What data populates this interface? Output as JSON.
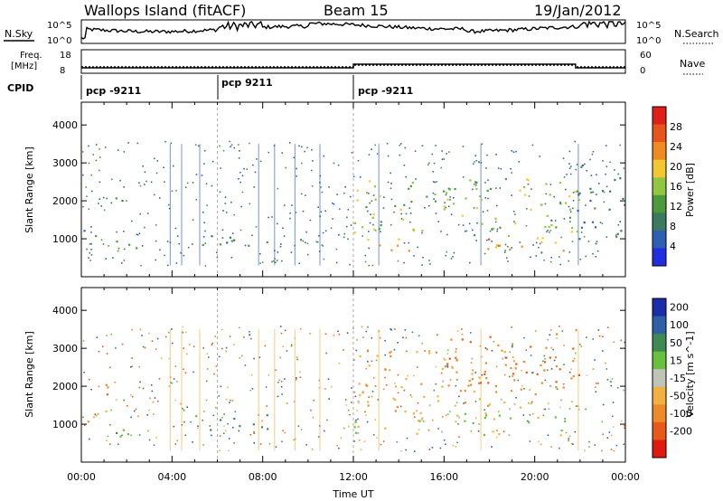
{
  "header": {
    "site": "Wallops Island (fitACF)",
    "beam": "Beam 15",
    "date": "19/Jan/2012"
  },
  "noise_panel": {
    "label_left": "N.Sky",
    "label_right": "N.Search",
    "left_ticks": [
      "10^5",
      "10^0"
    ],
    "right_ticks": [
      "10^5",
      "10^0"
    ]
  },
  "freq_panel": {
    "label_left_1": "Freq.",
    "label_left_2": "[MHz]",
    "label_right": "Nave",
    "left_ticks": [
      "18",
      "8"
    ],
    "right_ticks": [
      "60",
      "0"
    ]
  },
  "cpid_panel": {
    "label": "CPID",
    "segments": [
      {
        "label": "pcp -9211",
        "start_hour": 0
      },
      {
        "label": "pcp 9211",
        "start_hour": 6
      },
      {
        "label": "pcp -9211",
        "start_hour": 12
      }
    ]
  },
  "colors": {
    "power_scale": [
      "#1f2fe0",
      "#2d5fb4",
      "#3a7a5e",
      "#4d9a3a",
      "#90c640",
      "#f2c832",
      "#f08a22",
      "#e8551a",
      "#e02018"
    ],
    "velocity_scale": [
      "#1c2da8",
      "#2f5fa6",
      "#3e8a52",
      "#66c23c",
      "#c0c4b8",
      "#f2b040",
      "#ee8a2a",
      "#e85a1a",
      "#e01a10"
    ]
  },
  "chart_data": [
    {
      "type": "heatmap",
      "name": "power",
      "xlabel": "",
      "ylabel": "Slant Range [km]",
      "x_range_hours": [
        0,
        24
      ],
      "ylim": [
        0,
        4600
      ],
      "y_ticks": [
        1000,
        2000,
        3000,
        4000
      ],
      "colorbar_label": "Power [dB]",
      "colorbar_ticks": [
        4,
        8,
        12,
        16,
        20,
        24,
        28
      ],
      "colorbar_range": [
        0,
        32
      ],
      "features": [
        {
          "t_start": 0.0,
          "t_end": 1.2,
          "range_start": 1000,
          "range_end": 1300,
          "power": 8
        },
        {
          "t_start": 1.0,
          "t_end": 2.0,
          "range_start": 1700,
          "range_end": 2100,
          "power": 10
        },
        {
          "t_start": 1.5,
          "t_end": 3.4,
          "range_start": 700,
          "range_end": 1050,
          "power": 12
        },
        {
          "t_start": 5.0,
          "t_end": 8.2,
          "range_start": 800,
          "range_end": 1300,
          "power": 10
        },
        {
          "t_start": 9.2,
          "t_end": 10.2,
          "range_start": 750,
          "range_end": 1000,
          "power": 8
        },
        {
          "t_start": 11.8,
          "t_end": 21.8,
          "range_start": 700,
          "range_end": 1050,
          "power": 22
        },
        {
          "t_start": 12.0,
          "t_end": 22.0,
          "range_start": 1100,
          "range_end": 2600,
          "power": 16
        },
        {
          "t_start": 21.8,
          "t_end": 24.0,
          "range_start": 1000,
          "range_end": 3000,
          "power": 8
        }
      ]
    },
    {
      "type": "heatmap",
      "name": "velocity",
      "xlabel": "Time UT",
      "ylabel": "Slant Range [km]",
      "x_range_hours": [
        0,
        24
      ],
      "x_tick_labels": [
        "00:00",
        "04:00",
        "08:00",
        "12:00",
        "16:00",
        "20:00",
        "00:00"
      ],
      "ylim": [
        0,
        4600
      ],
      "y_ticks": [
        1000,
        2000,
        3000,
        4000
      ],
      "colorbar_label": "Velocity [m s^-1]",
      "colorbar_ticks": [
        200,
        100,
        50,
        15,
        -15,
        -50,
        -100,
        -200
      ],
      "features": [
        {
          "t_start": 0.0,
          "t_end": 1.2,
          "range_start": 1000,
          "range_end": 1400,
          "velocity": -30
        },
        {
          "t_start": 1.0,
          "t_end": 2.0,
          "range_start": 1700,
          "range_end": 2200,
          "velocity": -60
        },
        {
          "t_start": 1.5,
          "t_end": 3.4,
          "range_start": 700,
          "range_end": 1050,
          "velocity": 30
        },
        {
          "t_start": 5.0,
          "t_end": 8.2,
          "range_start": 800,
          "range_end": 1300,
          "velocity": 40
        },
        {
          "t_start": 11.8,
          "t_end": 21.8,
          "range_start": 700,
          "range_end": 1300,
          "velocity": 0
        },
        {
          "t_start": 12.0,
          "t_end": 20.0,
          "range_start": 1300,
          "range_end": 3000,
          "velocity": -20
        },
        {
          "t_start": 16.0,
          "t_end": 22.0,
          "range_start": 1800,
          "range_end": 3400,
          "velocity": -70
        }
      ]
    }
  ]
}
